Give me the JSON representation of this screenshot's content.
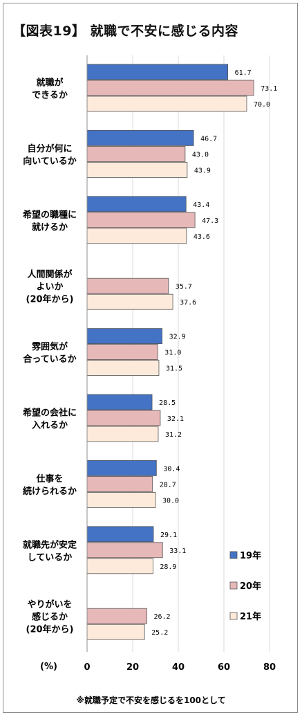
{
  "chart_data": {
    "type": "bar",
    "orientation": "horizontal",
    "title": "【図表19】 就職で不安に感じる内容",
    "categories": [
      [
        "就職が",
        "できるか"
      ],
      [
        "自分が何に",
        "向いているか"
      ],
      [
        "希望の職種に",
        "就けるか"
      ],
      [
        "人間関係が",
        "よいか",
        "(20年から)"
      ],
      [
        "雰囲気が",
        "合っているか"
      ],
      [
        "希望の会社に",
        "入れるか"
      ],
      [
        "仕事を",
        "続けられるか"
      ],
      [
        "就職先が安定",
        "しているか"
      ],
      [
        "やりがいを",
        "感じるか",
        "(20年から)"
      ]
    ],
    "series": [
      {
        "name": "19年",
        "color": "#4472c4",
        "values": [
          61.7,
          46.7,
          43.4,
          null,
          32.9,
          28.5,
          30.4,
          29.1,
          null
        ],
        "labels": [
          "61.7",
          "46.7",
          "43.4",
          "",
          "32.9",
          "28.5",
          "30.4",
          "29.1",
          ""
        ]
      },
      {
        "name": "20年",
        "color": "#e6b8b7",
        "values": [
          73.1,
          43.0,
          47.3,
          35.7,
          31.0,
          32.1,
          28.7,
          33.1,
          26.2
        ],
        "labels": [
          "73.1",
          "43.0",
          "47.3",
          "35.7",
          "31.0",
          "32.1",
          "28.7",
          "33.1",
          "26.2"
        ]
      },
      {
        "name": "21年",
        "color": "#fdeada",
        "values": [
          70.0,
          43.9,
          43.6,
          37.6,
          31.5,
          31.2,
          30.0,
          28.9,
          25.2
        ],
        "labels": [
          "70.0",
          "43.9",
          "43.6",
          "37.6",
          "31.5",
          "31.2",
          "30.0",
          "28.9",
          "25.2"
        ]
      }
    ],
    "xlim": [
      0,
      80
    ],
    "xticks": [
      0,
      20,
      40,
      60,
      80
    ],
    "xunit": "(%)",
    "grid": true,
    "legend": "bottom-right",
    "footnote": "※就職予定で不安を感じるを100として"
  }
}
